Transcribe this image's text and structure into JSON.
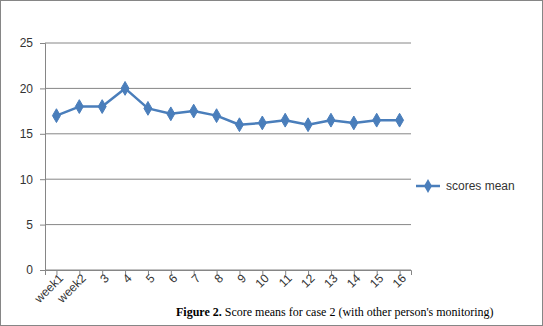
{
  "chart_data": {
    "type": "line",
    "title": "Figure 2. Score means for case 2 (with other person's monitoring)",
    "categories": [
      "week1",
      "week2",
      "3",
      "4",
      "5",
      "6",
      "7",
      "8",
      "9",
      "10",
      "11",
      "12",
      "13",
      "14",
      "15",
      "16"
    ],
    "series": [
      {
        "name": "scores mean",
        "color": "#4a7ebb",
        "marker": "diamond",
        "line_style": "solid",
        "values": [
          17,
          18,
          18,
          20,
          17.8,
          17.2,
          17.5,
          17,
          16,
          16.2,
          16.5,
          16,
          16.5,
          16.2,
          16.5,
          16.5
        ]
      }
    ],
    "ylim": [
      0,
      25
    ],
    "yticks": [
      0,
      5,
      10,
      15,
      20,
      25
    ],
    "grid": true,
    "legend": "right"
  }
}
